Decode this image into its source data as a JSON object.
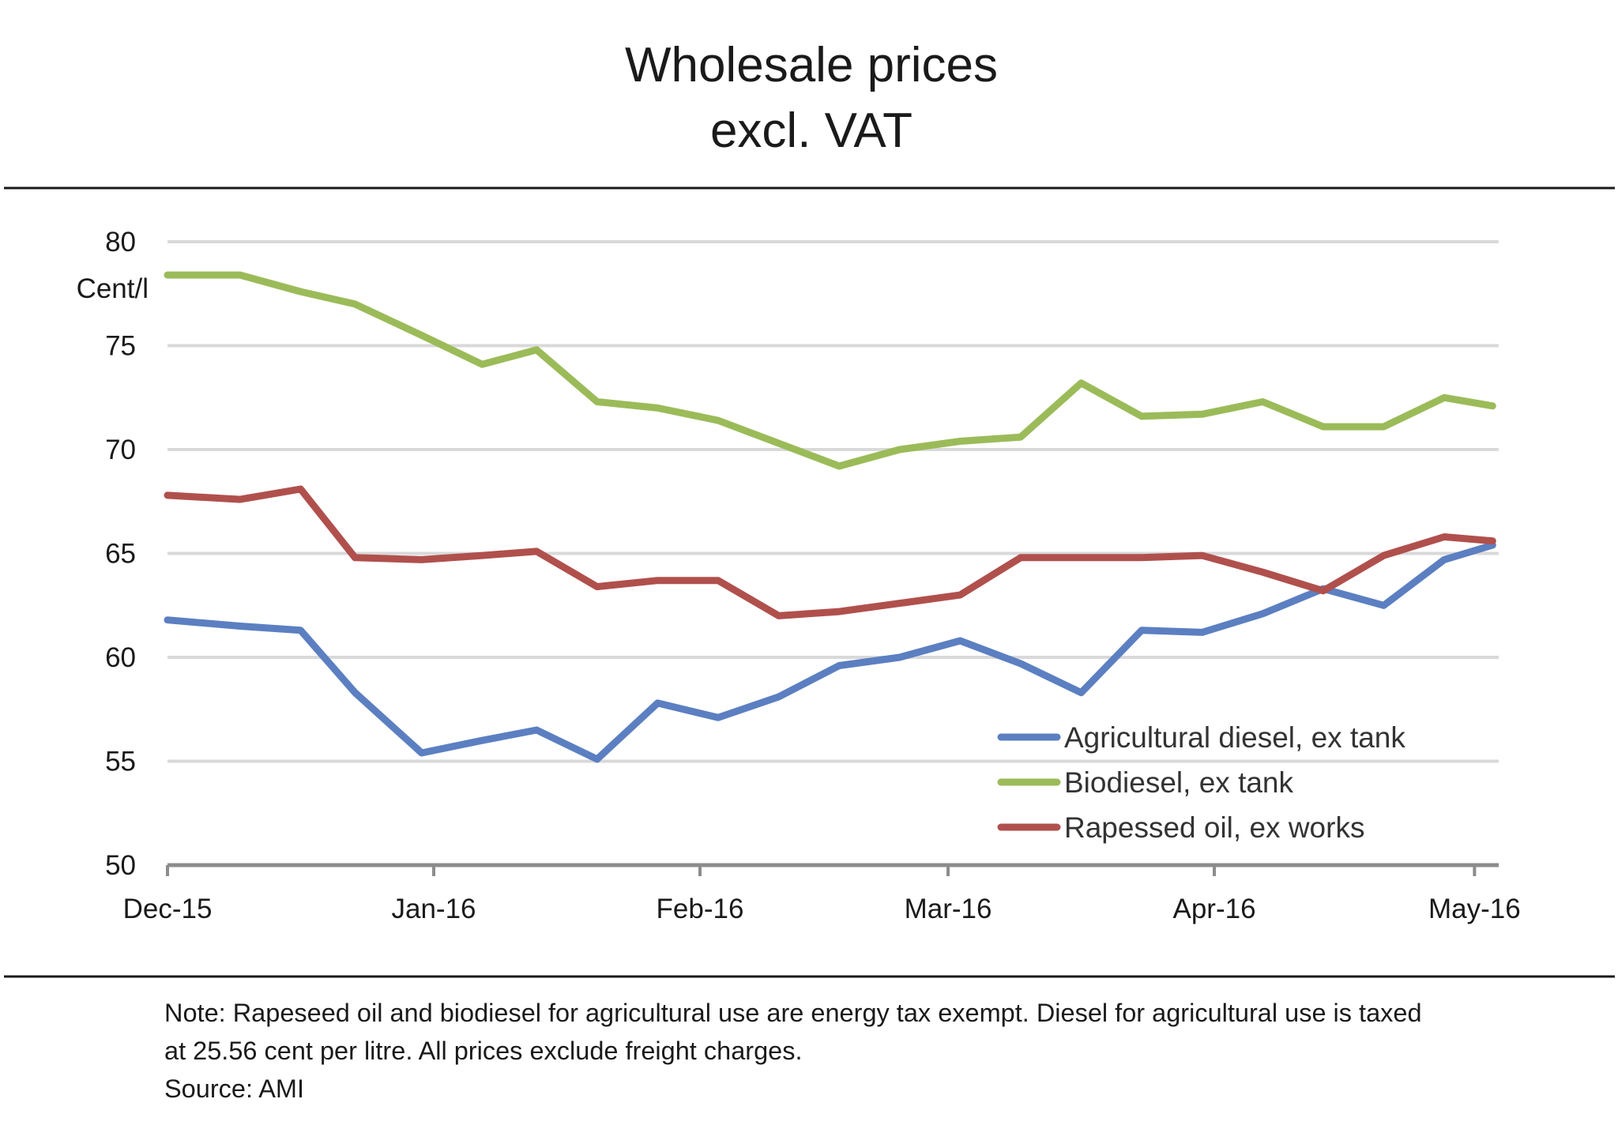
{
  "chart_data": {
    "type": "line",
    "title": "Wholesale prices",
    "subtitle": "excl. VAT",
    "ylabel": "Cent/l",
    "xlabel": "",
    "ylim": [
      50,
      80
    ],
    "yticks": [
      50,
      55,
      60,
      65,
      70,
      75,
      80
    ],
    "xlim": [
      0,
      22
    ],
    "xtick_labels": [
      "Dec-15",
      "Jan-16",
      "Feb-16",
      "Mar-16",
      "Apr-16",
      "May-16"
    ],
    "xtick_positions": [
      0,
      4.4,
      8.8,
      12.9,
      17.3,
      21.6
    ],
    "grid": true,
    "legend_position": "bottom-right",
    "series": [
      {
        "name": "Agricultural diesel, ex tank",
        "color": "#5b7fc1",
        "x": [
          0,
          1.2,
          2.2,
          3.1,
          4.2,
          5.2,
          6.1,
          7.1,
          8.1,
          9.1,
          10.1,
          11.1,
          12.1,
          13.1,
          14.1,
          15.1,
          16.1,
          17.1,
          18.1,
          19.1,
          20.1,
          21.1,
          21.9
        ],
        "values": [
          61.8,
          61.5,
          61.3,
          58.3,
          55.4,
          56.0,
          56.5,
          55.1,
          57.8,
          57.1,
          58.1,
          59.6,
          60.0,
          60.8,
          59.7,
          58.3,
          61.3,
          61.2,
          62.1,
          63.3,
          62.5,
          64.7,
          65.4
        ]
      },
      {
        "name": "Biodiesel, ex tank",
        "color": "#9bbb59",
        "x": [
          0,
          1.2,
          2.2,
          3.1,
          4.2,
          5.2,
          6.1,
          7.1,
          8.1,
          9.1,
          10.1,
          11.1,
          12.1,
          13.1,
          14.1,
          15.1,
          16.1,
          17.1,
          18.1,
          19.1,
          20.1,
          21.1,
          21.9
        ],
        "values": [
          78.4,
          78.4,
          77.6,
          77.0,
          75.5,
          74.1,
          74.8,
          72.3,
          72.0,
          71.4,
          70.3,
          69.2,
          70.0,
          70.4,
          70.6,
          73.2,
          71.6,
          71.7,
          72.3,
          71.1,
          71.1,
          72.5,
          72.1
        ]
      },
      {
        "name": "Rapessed oil, ex works",
        "color": "#b0504d",
        "x": [
          0,
          1.2,
          2.2,
          3.1,
          4.2,
          5.2,
          6.1,
          7.1,
          8.1,
          9.1,
          10.1,
          11.1,
          12.1,
          13.1,
          14.1,
          15.1,
          16.1,
          17.1,
          18.1,
          19.1,
          20.1,
          21.1,
          21.9
        ],
        "values": [
          67.8,
          67.6,
          68.1,
          64.8,
          64.7,
          64.9,
          65.1,
          63.4,
          63.7,
          63.7,
          62.0,
          62.2,
          62.6,
          63.0,
          64.8,
          64.8,
          64.8,
          64.9,
          64.1,
          63.2,
          64.9,
          65.8,
          65.6
        ]
      }
    ]
  },
  "footer": {
    "note_line1": "Note:  Rapeseed oil and biodiesel  for agricultural use are energy tax exempt.  Diesel for agricultural use is taxed",
    "note_line2": "at 25.56 cent per litre. All prices exclude freight charges.",
    "source": "Source: AMI"
  }
}
